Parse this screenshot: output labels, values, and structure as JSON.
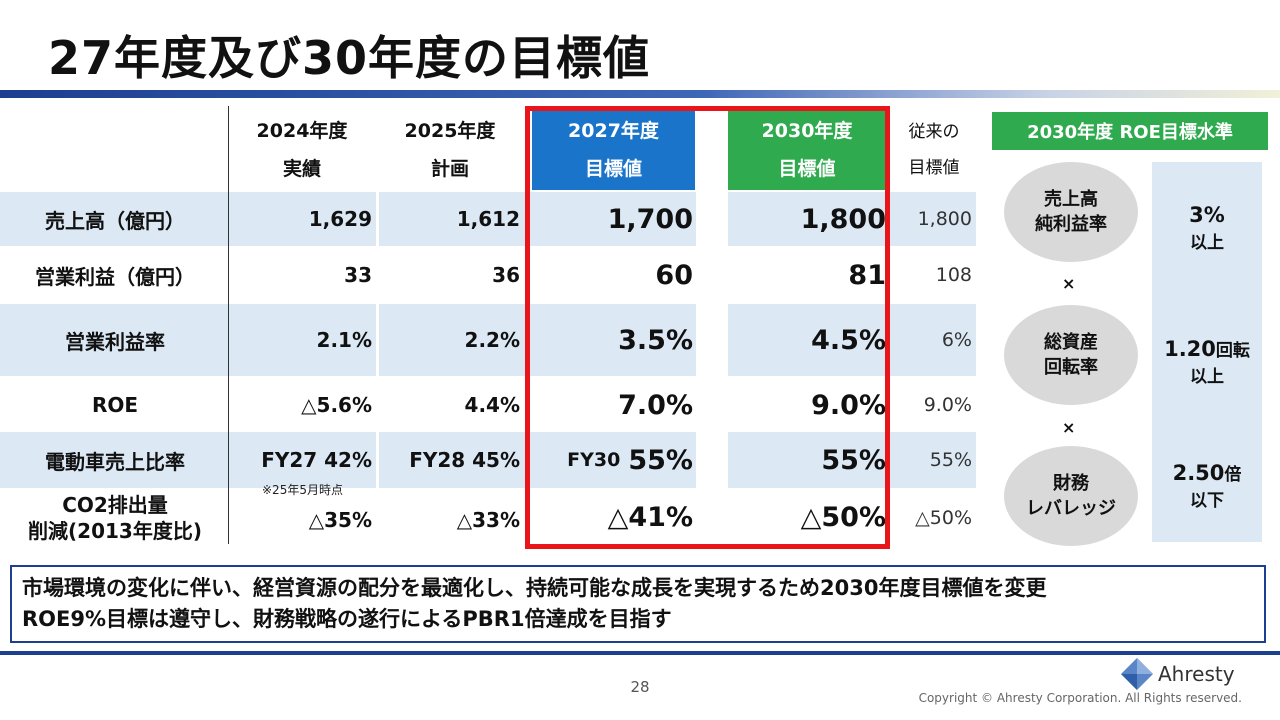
{
  "title": "27年度及び30年度の目標値",
  "headers": {
    "fy2024": {
      "year": "2024年度",
      "kind": "実績"
    },
    "fy2025": {
      "year": "2025年度",
      "kind": "計画"
    },
    "fy2027": {
      "year": "2027年度",
      "kind": "目標値"
    },
    "fy2030": {
      "year": "2030年度",
      "kind": "目標値"
    },
    "old": {
      "line1": "従来の",
      "line2": "目標値"
    }
  },
  "rows": [
    {
      "label": "売上高（億円）",
      "fy2024": "1,629",
      "fy2025": "1,612",
      "fy2027": "1,700",
      "fy2030": "1,800",
      "old": "1,800"
    },
    {
      "label": "営業利益（億円）",
      "fy2024": "33",
      "fy2025": "36",
      "fy2027": "60",
      "fy2030": "81",
      "old": "108"
    },
    {
      "label": "営業利益率",
      "fy2024": "2.1%",
      "fy2025": "2.2%",
      "fy2027": "3.5%",
      "fy2030": "4.5%",
      "old": "6%"
    },
    {
      "label": "ROE",
      "fy2024": "△5.6%",
      "fy2025": "4.4%",
      "fy2027": "7.0%",
      "fy2030": "9.0%",
      "old": "9.0%"
    },
    {
      "label": "電動車売上比率",
      "fy2024": "FY27 42%",
      "fy2025": "FY28 45%",
      "fy2027_prefix": "FY30",
      "fy2027": "55%",
      "fy2030": "55%",
      "old": "55%"
    },
    {
      "label_line1": "CO2排出量",
      "label_line2": "削減(2013年度比)",
      "fy2024": "△35%",
      "fy2025": "△33%",
      "fy2027": "△41%",
      "fy2030": "△50%",
      "old": "△50%"
    }
  ],
  "note": "※25年5月時点",
  "roe_panel": {
    "header": "2030年度 ROE目標水準",
    "items": [
      {
        "line1": "売上高",
        "line2": "純利益率",
        "value": "3%",
        "unit": "",
        "sub": "以上"
      },
      {
        "line1": "総資産",
        "line2": "回転率",
        "value": "1.20",
        "unit": "回転",
        "sub": "以上"
      },
      {
        "line1": "財務",
        "line2": "レバレッジ",
        "value": "2.50",
        "unit": "倍",
        "sub": "以下"
      }
    ],
    "times": "×"
  },
  "message": {
    "line1": "市場環境の変化に伴い、経営資源の配分を最適化し、持続可能な成長を実現するため2030年度目標値を変更",
    "line2": "ROE9%目標は遵守し、財務戦略の遂行によるPBR1倍達成を目指す"
  },
  "page_number": "28",
  "logo_text": "Ahresty",
  "copyright": "Copyright © Ahresty Corporation. All Rights reserved.",
  "colors": {
    "blue_header": "#1a74c9",
    "green_header": "#2faa4e",
    "highlight_border": "#e8161a",
    "row_band": "#dce9f5"
  }
}
